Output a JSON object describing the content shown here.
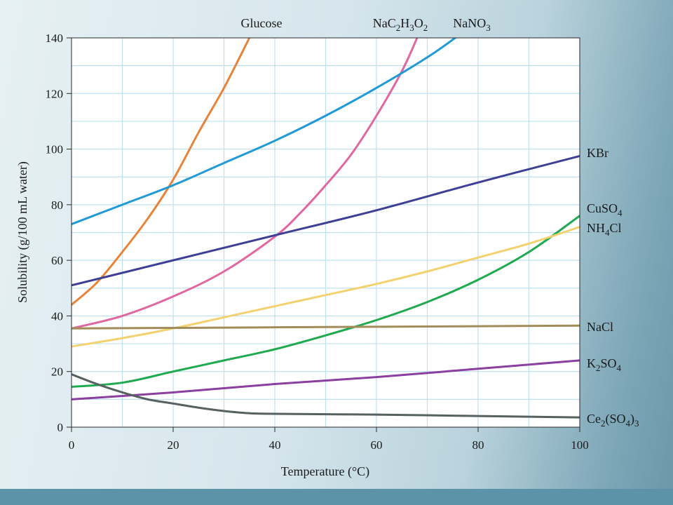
{
  "chart_data": {
    "type": "line",
    "xlabel": "Temperature (°C)",
    "ylabel": "Solubility (g/100 mL water)",
    "xlim": [
      0,
      100
    ],
    "ylim": [
      0,
      140
    ],
    "x_ticks": [
      0,
      20,
      40,
      60,
      80,
      100
    ],
    "y_ticks": [
      0,
      20,
      40,
      60,
      80,
      100,
      120,
      140
    ],
    "grid": true,
    "series": [
      {
        "name": "Glucose",
        "color": "#e8843a",
        "x": [
          0,
          5,
          10,
          15,
          20,
          25,
          30,
          35
        ],
        "y": [
          44,
          52,
          63,
          75,
          89,
          106,
          122,
          140
        ]
      },
      {
        "name": "NaC2H3O2",
        "color": "#e0679f",
        "x": [
          0,
          10,
          20,
          30,
          40,
          45,
          50,
          55,
          60,
          65,
          68
        ],
        "y": [
          35.5,
          40,
          47,
          56,
          68.5,
          77,
          87,
          98,
          112,
          128,
          140
        ]
      },
      {
        "name": "NaNO3",
        "color": "#1f9ad6",
        "x": [
          0,
          10,
          20,
          30,
          40,
          50,
          60,
          70,
          75.5
        ],
        "y": [
          73,
          80,
          87,
          95,
          103,
          112,
          122,
          133,
          140
        ]
      },
      {
        "name": "KBr",
        "color": "#3e3f96",
        "x": [
          0,
          20,
          40,
          60,
          80,
          100
        ],
        "y": [
          51,
          60,
          69,
          78,
          88,
          97.5
        ]
      },
      {
        "name": "CuSO4",
        "color": "#1faa4f",
        "x": [
          0,
          10,
          20,
          30,
          40,
          50,
          60,
          70,
          80,
          90,
          100
        ],
        "y": [
          14.5,
          16,
          20,
          24,
          28,
          33,
          38.5,
          45,
          53,
          63,
          76
        ]
      },
      {
        "name": "NH4Cl",
        "color": "#f2d26f",
        "x": [
          0,
          10,
          20,
          30,
          40,
          50,
          60,
          70,
          80,
          90,
          100
        ],
        "y": [
          29,
          32,
          35.5,
          39.5,
          43.5,
          47.5,
          51.5,
          56,
          61,
          66,
          72
        ]
      },
      {
        "name": "NaCl",
        "color": "#a28d5a",
        "x": [
          0,
          20,
          40,
          60,
          80,
          100
        ],
        "y": [
          35.5,
          35.7,
          35.9,
          36.1,
          36.3,
          36.5
        ]
      },
      {
        "name": "K2SO4",
        "color": "#8b3fa0",
        "x": [
          0,
          20,
          40,
          60,
          80,
          100
        ],
        "y": [
          10,
          12.5,
          15.5,
          18,
          21,
          24
        ]
      },
      {
        "name": "Ce2(SO4)3",
        "color": "#55625f",
        "x": [
          0,
          5,
          10,
          15,
          20,
          25,
          30,
          35,
          40,
          60,
          80,
          100
        ],
        "y": [
          19,
          15.5,
          12.5,
          10,
          8.5,
          7,
          5.8,
          5,
          4.8,
          4.5,
          4,
          3.5
        ]
      }
    ],
    "labels": {
      "top": [
        "Glucose",
        "NaC2H3O2",
        "NaNO3"
      ],
      "right": [
        "KBr",
        "CuSO4",
        "NH4Cl",
        "NaCl",
        "K2SO4",
        "Ce2(SO4)3"
      ]
    }
  }
}
